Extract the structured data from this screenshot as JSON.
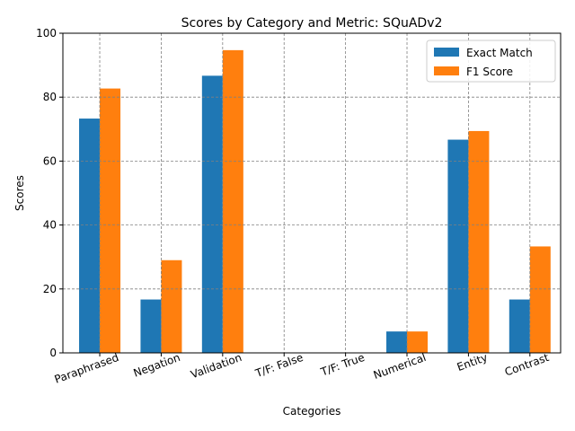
{
  "chart_data": {
    "type": "bar",
    "title": "Scores by Category and Metric: SQuADv2",
    "xlabel": "Categories",
    "ylabel": "Scores",
    "ylim": [
      0,
      100
    ],
    "yticks": [
      0,
      20,
      40,
      60,
      80,
      100
    ],
    "grid": true,
    "legend_position": "top-right",
    "categories": [
      "Paraphrased",
      "Negation",
      "Validation",
      "T/F: False",
      "T/F: True",
      "Numerical",
      "Entity",
      "Contrast"
    ],
    "series": [
      {
        "name": "Exact Match",
        "color": "#1f77b4",
        "values": [
          73.3,
          16.7,
          86.7,
          0,
          0,
          6.7,
          66.7,
          16.7
        ]
      },
      {
        "name": "F1 Score",
        "color": "#ff7f0e",
        "values": [
          82.7,
          29.0,
          94.7,
          0,
          0,
          6.7,
          69.4,
          33.3
        ]
      }
    ]
  }
}
